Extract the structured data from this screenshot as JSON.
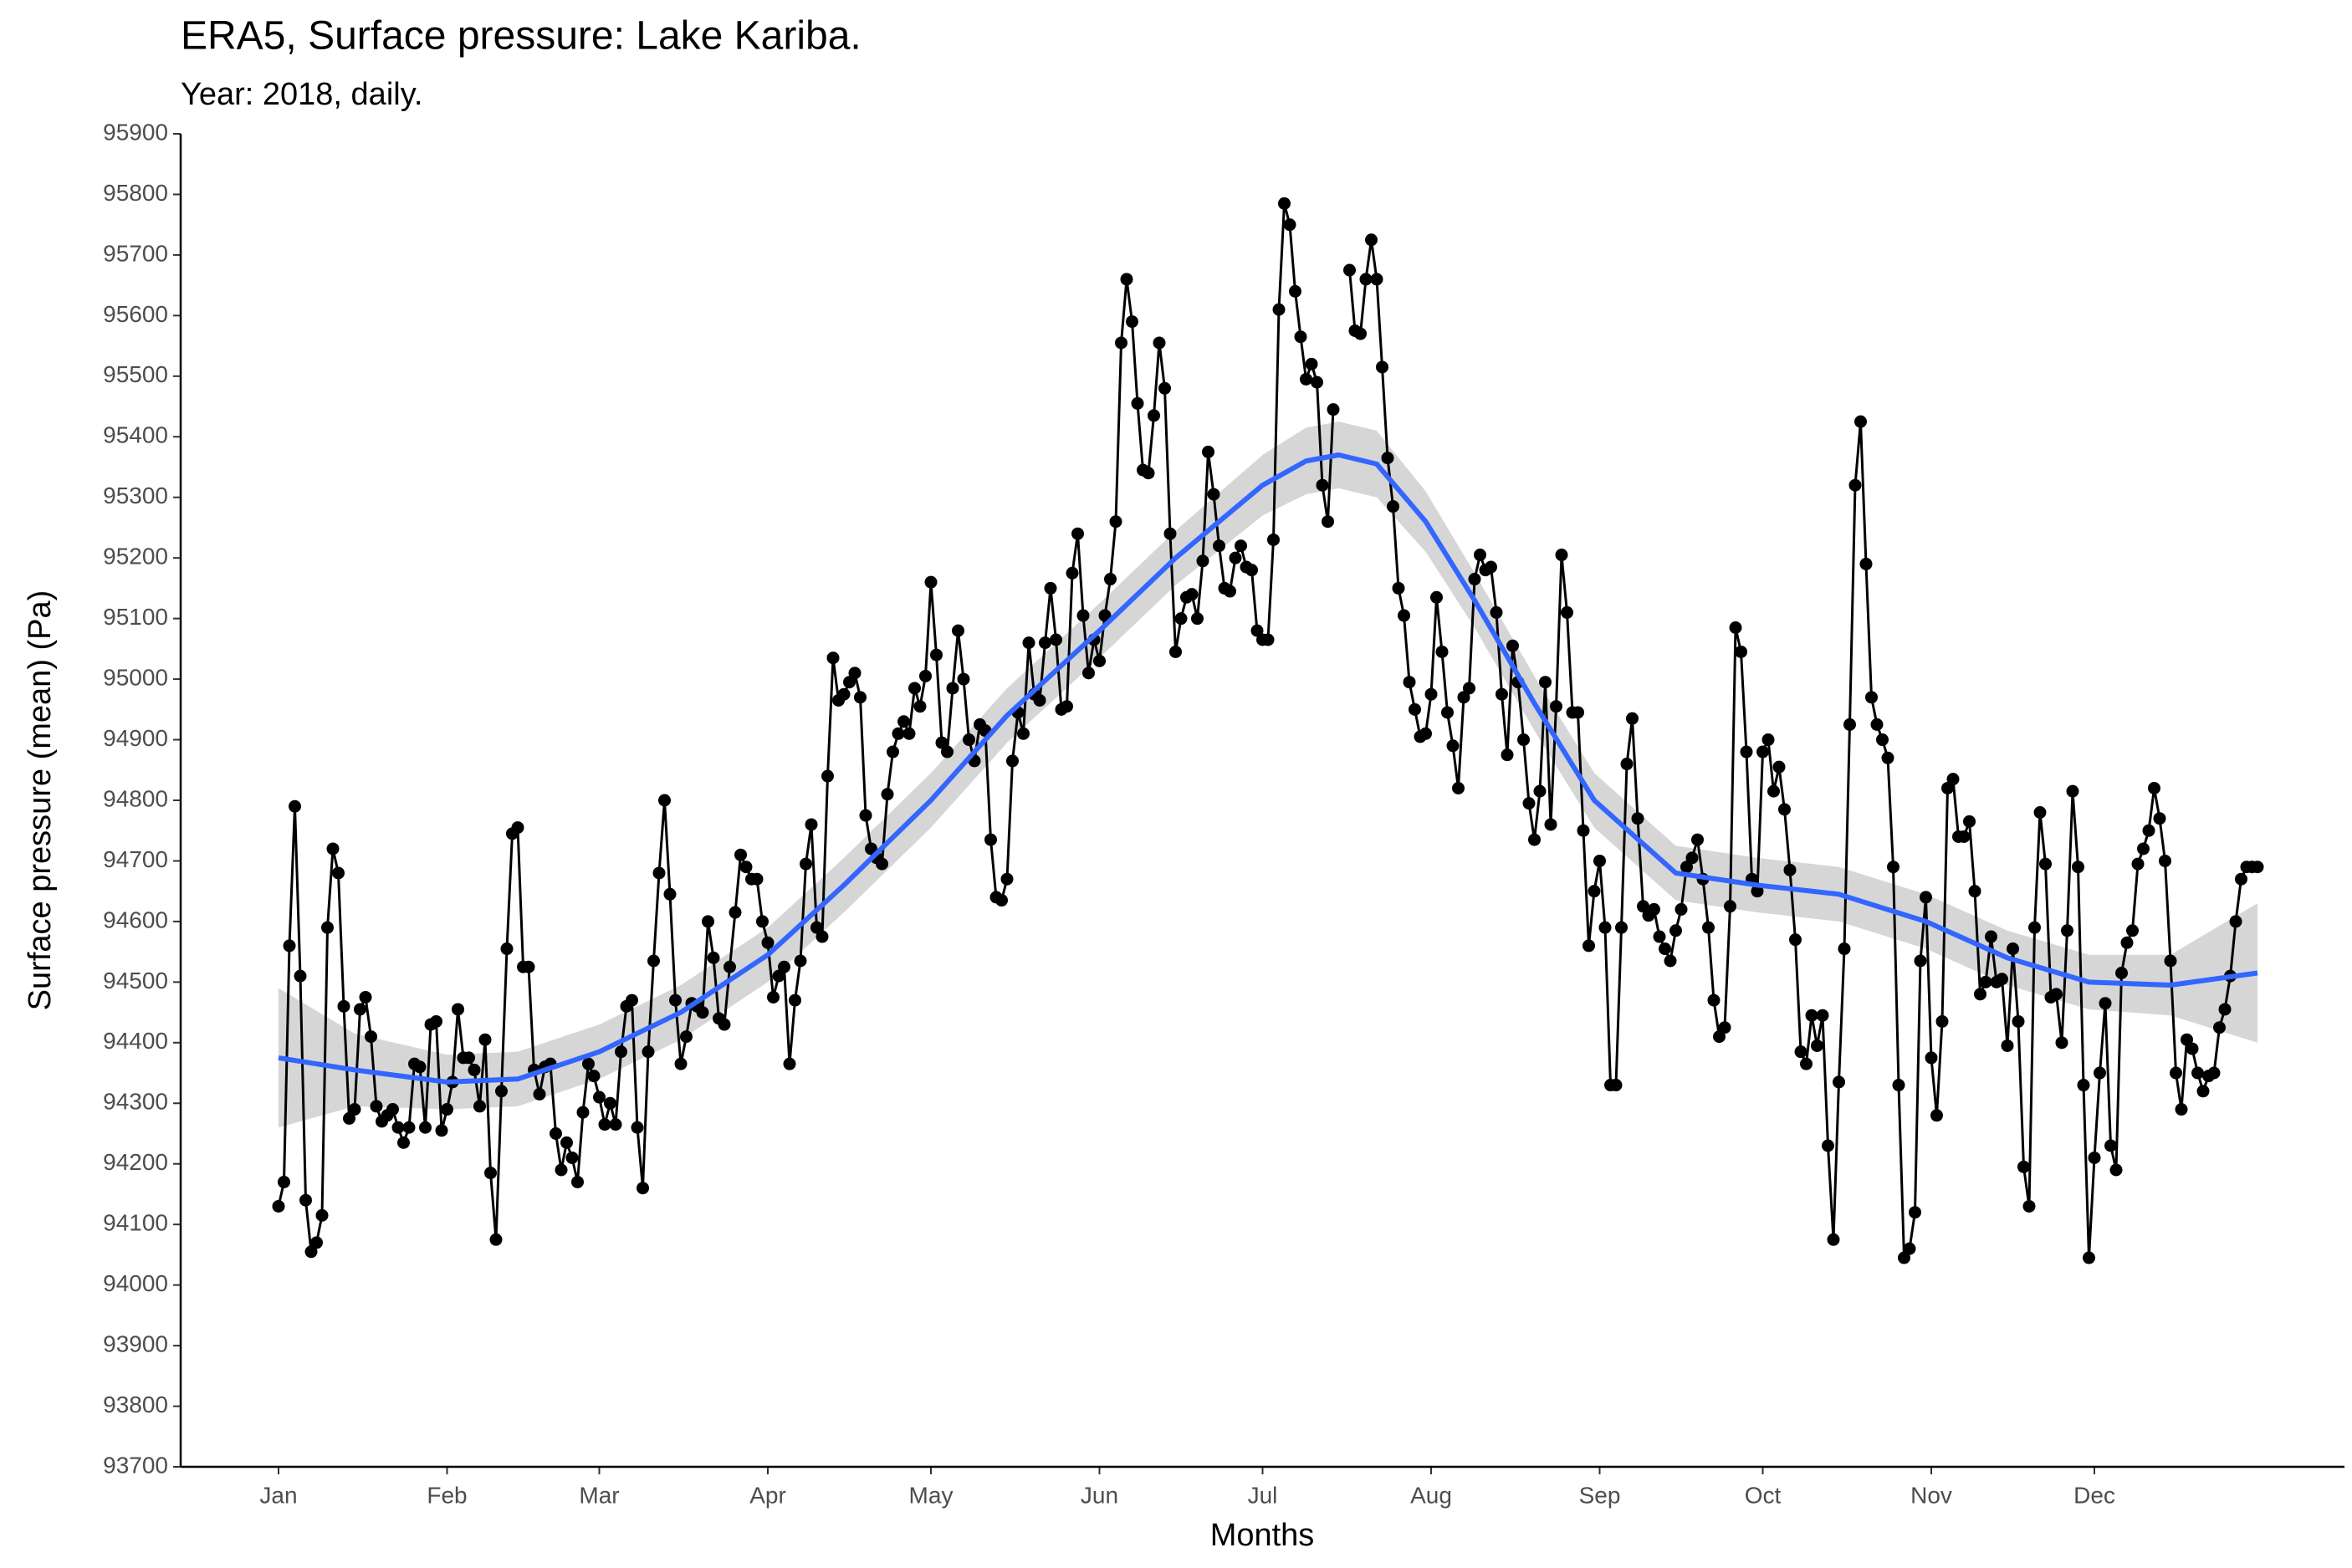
{
  "chart_data": {
    "type": "line",
    "title": "ERA5, Surface pressure: Lake Kariba.",
    "subtitle": "Year: 2018, daily.",
    "xlabel": "Months",
    "ylabel": "Surface pressure (mean) (Pa)",
    "xlim": [
      -17,
      381
    ],
    "ylim": [
      93700,
      95900
    ],
    "yticks": [
      93700,
      93800,
      93900,
      94000,
      94100,
      94200,
      94300,
      94400,
      94500,
      94600,
      94700,
      94800,
      94900,
      95000,
      95100,
      95200,
      95300,
      95400,
      95500,
      95600,
      95700,
      95800,
      95900
    ],
    "xticks": [
      {
        "value": 1,
        "label": "Jan"
      },
      {
        "value": 32,
        "label": "Feb"
      },
      {
        "value": 60,
        "label": "Mar"
      },
      {
        "value": 91,
        "label": "Apr"
      },
      {
        "value": 121,
        "label": "May"
      },
      {
        "value": 152,
        "label": "Jun"
      },
      {
        "value": 182,
        "label": "Jul"
      },
      {
        "value": 213,
        "label": "Aug"
      },
      {
        "value": 244,
        "label": "Sep"
      },
      {
        "value": 274,
        "label": "Oct"
      },
      {
        "value": 305,
        "label": "Nov"
      },
      {
        "value": 335,
        "label": "Dec"
      }
    ],
    "grid": false,
    "x": [
      1,
      2,
      3,
      4,
      5,
      6,
      7,
      8,
      9,
      10,
      11,
      12,
      13,
      14,
      15,
      16,
      17,
      18,
      19,
      20,
      21,
      22,
      23,
      24,
      25,
      26,
      27,
      28,
      29,
      30,
      31,
      32,
      33,
      34,
      35,
      36,
      37,
      38,
      39,
      40,
      41,
      42,
      43,
      44,
      45,
      46,
      47,
      48,
      49,
      50,
      51,
      52,
      53,
      54,
      55,
      56,
      57,
      58,
      59,
      60,
      61,
      62,
      63,
      64,
      65,
      66,
      67,
      68,
      69,
      70,
      71,
      72,
      73,
      74,
      75,
      76,
      77,
      78,
      79,
      80,
      81,
      82,
      83,
      84,
      85,
      86,
      87,
      88,
      89,
      90,
      91,
      92,
      93,
      94,
      95,
      96,
      97,
      98,
      99,
      100,
      101,
      102,
      103,
      104,
      105,
      106,
      107,
      108,
      109,
      110,
      111,
      112,
      113,
      114,
      115,
      116,
      117,
      118,
      119,
      120,
      121,
      122,
      123,
      124,
      125,
      126,
      127,
      128,
      129,
      130,
      131,
      132,
      133,
      134,
      135,
      136,
      137,
      138,
      139,
      140,
      141,
      142,
      143,
      144,
      145,
      146,
      147,
      148,
      149,
      150,
      151,
      152,
      153,
      154,
      155,
      156,
      157,
      158,
      159,
      160,
      161,
      162,
      163,
      164,
      165,
      166,
      167,
      168,
      169,
      170,
      171,
      172,
      173,
      174,
      175,
      176,
      177,
      178,
      179,
      180,
      181,
      182,
      183,
      184,
      185,
      186,
      187,
      188,
      189,
      190,
      191,
      192,
      193,
      194,
      195,
      196,
      197,
      198,
      199,
      200,
      201,
      202,
      203,
      204,
      205,
      206,
      207,
      208,
      209,
      210,
      211,
      212,
      213,
      214,
      215,
      216,
      217,
      218,
      219,
      220,
      221,
      222,
      223,
      224,
      225,
      226,
      227,
      228,
      229,
      230,
      231,
      232,
      233,
      234,
      235,
      236,
      237,
      238,
      239,
      240,
      241,
      242,
      243,
      244,
      245,
      246,
      247,
      248,
      249,
      250,
      251,
      252,
      253,
      254,
      255,
      256,
      257,
      258,
      259,
      260,
      261,
      262,
      263,
      264,
      265,
      266,
      267,
      268,
      269,
      270,
      271,
      272,
      273,
      274,
      275,
      276,
      277,
      278,
      279,
      280,
      281,
      282,
      283,
      284,
      285,
      286,
      287,
      288,
      289,
      290,
      291,
      292,
      293,
      294,
      295,
      296,
      297,
      298,
      299,
      300,
      301,
      302,
      303,
      304,
      305,
      306,
      307,
      308,
      309,
      310,
      311,
      312,
      313,
      314,
      315,
      316,
      317,
      318,
      319,
      320,
      321,
      322,
      323,
      324,
      325,
      326,
      327,
      328,
      329,
      330,
      331,
      332,
      333,
      334,
      335,
      336,
      337,
      338,
      339,
      340,
      341,
      342,
      343,
      344,
      345,
      346,
      347,
      348,
      349,
      350,
      351,
      352,
      353,
      354,
      355,
      356,
      357,
      358,
      359,
      360,
      361,
      362,
      363,
      364,
      365
    ],
    "series": [
      {
        "color": "#000000",
        "values": [
          94130,
          94170,
          94560,
          94790,
          94510,
          94140,
          94055,
          94070,
          94115,
          94590,
          94720,
          94680,
          94460,
          94275,
          94290,
          94455,
          94475,
          94410,
          94295,
          94270,
          94280,
          94290,
          94260,
          94235,
          94260,
          94365,
          94360,
          94260,
          94430,
          94435,
          94255,
          94290,
          94335,
          94455,
          94375,
          94375,
          94355,
          94295,
          94405,
          94185,
          94075,
          94320,
          94555,
          94745,
          94755,
          94525,
          94525,
          94355,
          94315,
          94360,
          94365,
          94250,
          94190,
          94235,
          94210,
          94170,
          94285,
          94365,
          94345,
          94310,
          94265,
          94300,
          94265,
          94385,
          94460,
          94470,
          94260,
          94160,
          94385,
          94535,
          94680,
          94800,
          94645,
          94470,
          94365,
          94410,
          94465,
          94460,
          94450,
          94600,
          94540,
          94440,
          94430,
          94525,
          94615,
          94710,
          94690,
          94670,
          94670,
          94600,
          94565,
          94475,
          94510,
          94525,
          94365,
          94470,
          94535,
          94695,
          94760,
          94590,
          94575,
          94840,
          95035,
          94965,
          94975,
          94995,
          95010,
          94970,
          94775,
          94720,
          94705,
          94695,
          94810,
          94880,
          94910,
          94930,
          94910,
          94985,
          94955,
          95005,
          95160,
          95040,
          94895,
          94880,
          94985,
          95080,
          95000,
          94900,
          94865,
          94925,
          94915,
          94735,
          94640,
          94635,
          94670,
          94865,
          94945,
          94910,
          95060,
          94975,
          94965,
          95060,
          95150,
          95065,
          94950,
          94955,
          95175,
          95240,
          95105,
          95010,
          95065,
          95030,
          95105,
          95165,
          95260,
          95555,
          95660,
          95590,
          95455,
          95345,
          95340,
          95435,
          95555,
          95480,
          95240,
          95045,
          95100,
          95135,
          95140,
          95100,
          95195,
          95375,
          95305,
          95220,
          95150,
          95145,
          95200,
          95220,
          95185,
          95180,
          95080,
          95065,
          95065,
          95230,
          95610,
          95785,
          95750,
          95640,
          95565,
          95495,
          95520,
          95490,
          95320,
          95260,
          95445,
          null,
          null,
          95675,
          95575,
          95570,
          95660,
          95725,
          95660,
          95515,
          95365,
          95285,
          95150,
          95105,
          94995,
          94950,
          94905,
          94910,
          94975,
          95135,
          95045,
          94945,
          94890,
          94820,
          94970,
          94985,
          95165,
          95205,
          95180,
          95185,
          95110,
          94975,
          94875,
          95055,
          94995,
          94900,
          94795,
          94735,
          94815,
          94995,
          94760,
          94955,
          95205,
          95110,
          94945,
          94945,
          94750,
          94560,
          94650,
          94700,
          94590,
          94330,
          94330,
          94590,
          94860,
          94935,
          94770,
          94625,
          94610,
          94620,
          94575,
          94555,
          94535,
          94585,
          94620,
          94690,
          94705,
          94735,
          94670,
          94590,
          94470,
          94410,
          94425,
          94625,
          95085,
          95045,
          94880,
          94670,
          94650,
          94880,
          94900,
          94815,
          94855,
          94785,
          94685,
          94570,
          94385,
          94365,
          94445,
          94395,
          94445,
          94230,
          94075,
          94335,
          94555,
          94925,
          95320,
          95425,
          95190,
          94970,
          94925,
          94900,
          94870,
          94690,
          94330,
          94045,
          94060,
          94120,
          94535,
          94640,
          94375,
          94280,
          94435,
          94820,
          94835,
          94740,
          94740,
          94765,
          94650,
          94480,
          94500,
          94575,
          94500,
          94505,
          94395,
          94555,
          94435,
          94195,
          94130,
          94590,
          94780,
          94695,
          94475,
          94480,
          94400,
          94585,
          94815,
          94690,
          94330,
          94045,
          94210,
          94350,
          94465,
          94230,
          94190,
          94515,
          94565,
          94585,
          94695,
          94720,
          94750,
          94820,
          94770,
          94700,
          94535,
          94350,
          94290,
          94405,
          94390,
          94350,
          94320,
          94345,
          94350,
          94425,
          94455,
          94510,
          94600,
          94670,
          94690,
          94690,
          94690
        ]
      }
    ],
    "smooth": {
      "color": "#3366ff",
      "band_color": "#d6d6d6",
      "x": [
        1,
        15,
        32,
        45,
        60,
        75,
        91,
        105,
        121,
        135,
        152,
        166,
        182,
        190,
        196,
        203,
        212,
        221,
        232,
        243,
        258,
        273,
        288,
        304,
        319,
        334,
        349,
        365
      ],
      "values": [
        94375,
        94355,
        94335,
        94340,
        94385,
        94450,
        94545,
        94660,
        94800,
        94940,
        95080,
        95200,
        95320,
        95360,
        95370,
        95355,
        95260,
        95130,
        94960,
        94800,
        94680,
        94660,
        94645,
        94600,
        94540,
        94500,
        94495,
        94515
      ],
      "lower": [
        94260,
        94295,
        94290,
        94295,
        94340,
        94405,
        94500,
        94615,
        94755,
        94895,
        95035,
        95155,
        95270,
        95305,
        95315,
        95300,
        95210,
        95085,
        94915,
        94755,
        94635,
        94615,
        94600,
        94555,
        94495,
        94455,
        94445,
        94400
      ],
      "upper": [
        94490,
        94415,
        94380,
        94385,
        94430,
        94495,
        94590,
        94705,
        94845,
        94985,
        95125,
        95245,
        95370,
        95415,
        95425,
        95410,
        95310,
        95175,
        95005,
        94845,
        94725,
        94705,
        94690,
        94645,
        94585,
        94545,
        94545,
        94630
      ]
    }
  }
}
